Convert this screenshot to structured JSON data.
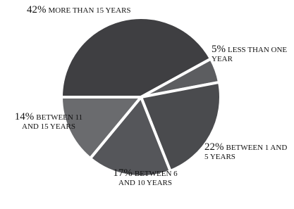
{
  "chart_data": {
    "type": "pie",
    "categories": [
      "MORE THAN 15 YEARS",
      "LESS THAN ONE YEAR",
      "BETWEEN 1 AND 5 YEARS",
      "BETWEEN 6 AND 10 YEARS",
      "BETWEEN 11 AND 15 YEARS"
    ],
    "values": [
      42,
      5,
      22,
      17,
      14
    ],
    "value_labels": [
      "42%",
      "5%",
      "22%",
      "17%",
      "14%"
    ],
    "colors": [
      "#3f3f42",
      "#5c5d60",
      "#4a4b4e",
      "#55565a",
      "#6a6b6e"
    ]
  }
}
